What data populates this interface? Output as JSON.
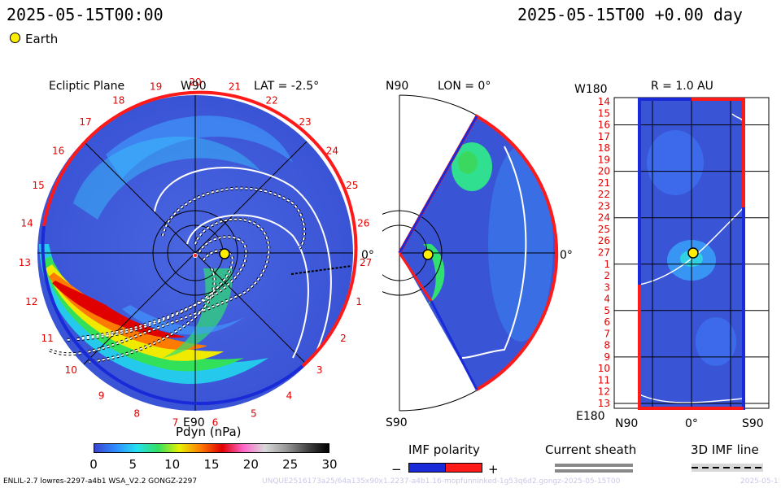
{
  "header": {
    "date_left": "2025-05-15T00:00",
    "date_right": "2025-05-15T00 +0.00 day",
    "legend_earth": "Earth"
  },
  "colors": {
    "background_blue": "#3a5ad8",
    "pos_polarity": "#ff1a1a",
    "neg_polarity": "#1a2ad8",
    "earth": "#ffee00"
  },
  "chart_data": [
    {
      "type": "heatmap",
      "view": "ecliptic-plane",
      "title": "Ecliptic Plane",
      "lat_label": "LAT = -2.5°",
      "top_axis_label": "W90",
      "bottom_axis_label": "E90",
      "right_axis_label": "0°",
      "carrington_labels": [
        "20",
        "21",
        "22",
        "23",
        "24",
        "25",
        "26",
        "27",
        "1",
        "2",
        "3",
        "4",
        "5",
        "6",
        "7",
        "8",
        "9",
        "10",
        "11",
        "12",
        "13",
        "14",
        "15",
        "16",
        "17",
        "18",
        "19"
      ]
    },
    {
      "type": "heatmap",
      "view": "meridional-plane",
      "title": "LON = 0°",
      "top_axis_label": "N90",
      "bottom_axis_label": "S90",
      "right_axis_label": "0°"
    },
    {
      "type": "heatmap",
      "view": "1-au-sphere",
      "title": "R = 1.0 AU",
      "top_axis_label": "W180",
      "bottom_axis_label": "E180",
      "x_ticks": [
        "N90",
        "0°",
        "S90"
      ],
      "y_ticks": [
        "14",
        "15",
        "16",
        "17",
        "18",
        "19",
        "20",
        "21",
        "22",
        "23",
        "24",
        "25",
        "26",
        "27",
        "1",
        "2",
        "3",
        "4",
        "5",
        "6",
        "7",
        "8",
        "9",
        "10",
        "11",
        "12",
        "13"
      ]
    }
  ],
  "colorbar": {
    "title": "Pdyn (nPa)",
    "ticks": [
      0,
      5,
      10,
      15,
      20,
      25,
      30
    ],
    "range": [
      0,
      30
    ],
    "stops": [
      "#3a44d0",
      "#2f8cff",
      "#25e0f0",
      "#33e060",
      "#e8f000",
      "#ff7a00",
      "#e00000",
      "#ff66cc",
      "#d8d8d8",
      "#999999",
      "#444444",
      "#000000"
    ]
  },
  "legends": {
    "imf_polarity_title": "IMF polarity",
    "imf_minus": "−",
    "imf_plus": "+",
    "current_sheath_title": "Current sheath",
    "imf_line_title": "3D IMF line"
  },
  "footer": {
    "model_info": "ENLIL-2.7 lowres-2297-a4b1 WSA_V2.2 GONGZ-2297",
    "run_id": "UNQUE2516173a25/64a135x90x1.2237-a4b1.16-mopfunninked-1g53q6d2.gongz-2025-05-15T00",
    "run_date_short": "2025-05-15"
  }
}
